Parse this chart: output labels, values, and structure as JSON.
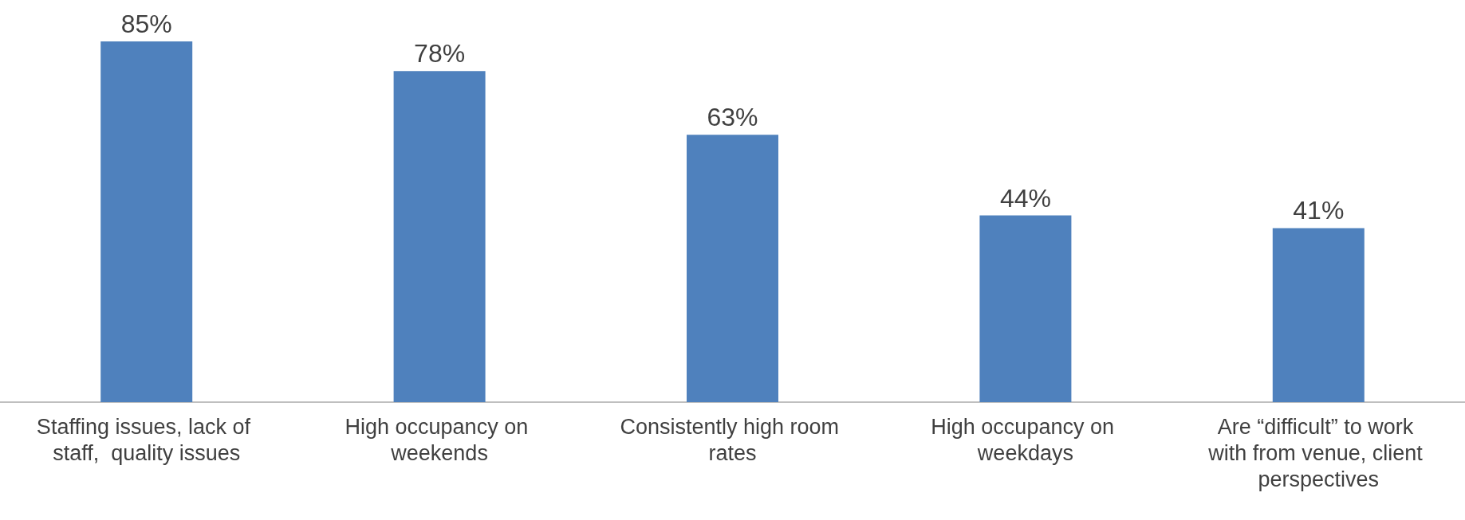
{
  "chart_data": {
    "type": "bar",
    "categories": [
      "Staffing issues, lack of staff,  quality issues",
      "High occupancy on weekends",
      "Consistently high room rates",
      "High occupancy on weekdays",
      "Are “difficult” to work with from venue, client perspectives"
    ],
    "values": [
      85,
      78,
      63,
      44,
      41
    ],
    "value_labels": [
      "85%",
      "78%",
      "63%",
      "44%",
      "41%"
    ],
    "color": "#4f81bd"
  }
}
